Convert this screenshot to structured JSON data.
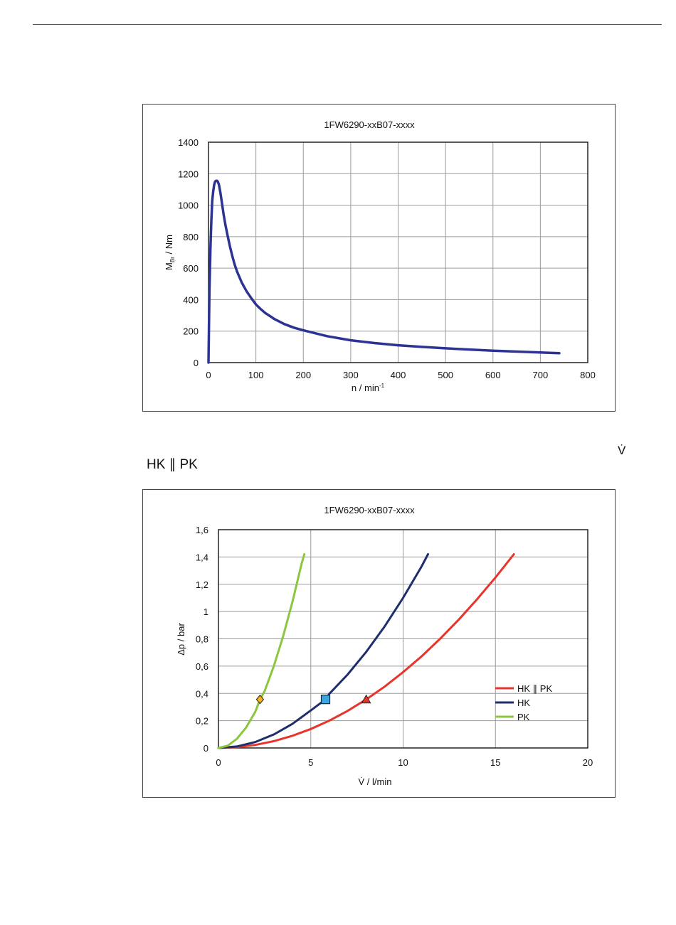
{
  "page": {
    "stray_v_dot": "V̇",
    "caption_hk_pk": "HK ∥ PK"
  },
  "chart_data": [
    {
      "type": "line",
      "title": "1FW6290-xxB07-xxxx",
      "xlabel": "n / min-1",
      "ylabel": "MBr / Nm",
      "xlim": [
        0,
        800
      ],
      "ylim": [
        0,
        1400
      ],
      "xticks": [
        0,
        100,
        200,
        300,
        400,
        500,
        600,
        700,
        800
      ],
      "yticks": [
        0,
        200,
        400,
        600,
        800,
        1000,
        1200,
        1400
      ],
      "grid": true,
      "color": "#2d3393",
      "series": [
        {
          "x": [
            0,
            2,
            4,
            6,
            8,
            10,
            12,
            14,
            16,
            18,
            20,
            22,
            25,
            28,
            32,
            36,
            40,
            45,
            50,
            55,
            60,
            70,
            80,
            90,
            100,
            110,
            120,
            140,
            160,
            180,
            200,
            250,
            300,
            350,
            400,
            450,
            500,
            550,
            600,
            650,
            700,
            740
          ],
          "y": [
            0,
            450,
            720,
            900,
            1030,
            1090,
            1130,
            1150,
            1155,
            1155,
            1148,
            1130,
            1080,
            1020,
            940,
            870,
            810,
            740,
            680,
            625,
            580,
            510,
            455,
            410,
            370,
            340,
            315,
            275,
            245,
            222,
            205,
            168,
            142,
            124,
            110,
            100,
            91,
            83,
            76,
            70,
            64,
            60
          ]
        }
      ]
    },
    {
      "type": "line",
      "title": "1FW6290-xxB07-xxxx",
      "xlabel": "V̇ / l/min",
      "ylabel": "Δp / bar",
      "xlim": [
        0,
        20
      ],
      "ylim": [
        0,
        1.6
      ],
      "xticks": [
        "0",
        "5",
        "10",
        "15",
        "20"
      ],
      "yticks": [
        "0",
        "0,2",
        "0,4",
        "0,6",
        "0,8",
        "1",
        "1,2",
        "1,4",
        "1,6"
      ],
      "grid": true,
      "legend": "right",
      "series": [
        {
          "name": "HK ∥ PK",
          "color": "#e8352b",
          "x": [
            0,
            1,
            2,
            3,
            4,
            5,
            6,
            7,
            8,
            9,
            10,
            11,
            12,
            13,
            14,
            15,
            16
          ],
          "y": [
            0,
            0.0056,
            0.0222,
            0.05,
            0.089,
            0.139,
            0.2,
            0.272,
            0.356,
            0.45,
            0.556,
            0.672,
            0.8,
            0.939,
            1.089,
            1.25,
            1.42
          ],
          "marker": {
            "shape": "triangle",
            "x": 8,
            "y": 0.356,
            "fill": "#e8352b"
          }
        },
        {
          "name": "HK",
          "color": "#1f2f6e",
          "x": [
            0,
            1,
            2,
            3,
            4,
            5,
            5.8,
            6,
            7,
            8,
            9,
            10,
            11,
            11.35
          ],
          "y": [
            0,
            0.011,
            0.044,
            0.099,
            0.176,
            0.275,
            0.356,
            0.396,
            0.539,
            0.704,
            0.891,
            1.1,
            1.331,
            1.42
          ],
          "marker": {
            "shape": "square",
            "x": 5.8,
            "y": 0.356,
            "fill": "#3ba6e0"
          }
        },
        {
          "name": "PK",
          "color": "#8cc63f",
          "x": [
            0,
            0.5,
            1,
            1.5,
            2,
            2.25,
            2.5,
            3,
            3.5,
            4,
            4.5,
            4.65
          ],
          "y": [
            0,
            0.0167,
            0.0667,
            0.15,
            0.267,
            0.356,
            0.417,
            0.6,
            0.817,
            1.067,
            1.35,
            1.42
          ],
          "marker": {
            "shape": "diamond",
            "x": 2.25,
            "y": 0.356,
            "fill": "#f6b21b"
          }
        }
      ]
    }
  ]
}
